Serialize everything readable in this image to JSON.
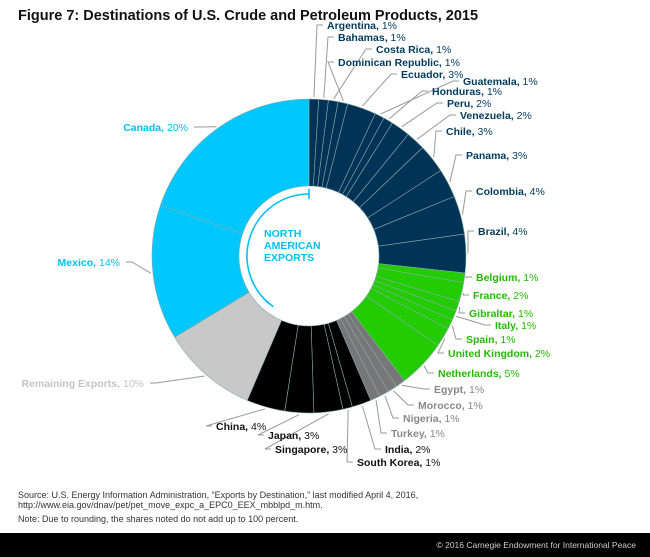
{
  "title": "Figure 7: Destinations of U.S. Crude and Petroleum Products, 2015",
  "source": "Source: U.S. Energy Information Administration, “Exports by Destination,” last modified April 4, 2016, http://www.eia.gov/dnav/pet/pet_move_expc_a_EPC0_EEX_mbblpd_m.htm.",
  "note": "Note: Due to rounding, the shares noted do not add up to 100 percent.",
  "copyright": "© 2016 Carnegie Endowment for International Peace",
  "chart_data": {
    "type": "pie",
    "donut": true,
    "unit": "%",
    "center_label": [
      "NORTH",
      "AMERICAN",
      "EXPORTS"
    ],
    "group_colors": {
      "latin": "#003355",
      "europe": "#22cc00",
      "africa_turkey": "#777777",
      "asia": "#000000",
      "remaining": "#c8c8c8",
      "north_america": "#00c8ff"
    },
    "label_colors": {
      "latin": "#003a5c",
      "europe": "#22bb00",
      "africa_turkey": "#888888",
      "asia": "#111111",
      "remaining": "#c4c4c4",
      "north_america": "#00c0f5"
    },
    "slices": [
      {
        "name": "Argentina",
        "value": 1,
        "group": "latin"
      },
      {
        "name": "Bahamas",
        "value": 1,
        "group": "latin"
      },
      {
        "name": "Costa Rica",
        "value": 1,
        "group": "latin"
      },
      {
        "name": "Dominican Republic",
        "value": 1,
        "group": "latin"
      },
      {
        "name": "Ecuador",
        "value": 3,
        "group": "latin"
      },
      {
        "name": "Guatemala",
        "value": 1,
        "group": "latin"
      },
      {
        "name": "Honduras",
        "value": 1,
        "group": "latin"
      },
      {
        "name": "Peru",
        "value": 2,
        "group": "latin"
      },
      {
        "name": "Venezuela",
        "value": 2,
        "group": "latin"
      },
      {
        "name": "Chile",
        "value": 3,
        "group": "latin"
      },
      {
        "name": "Panama",
        "value": 3,
        "group": "latin"
      },
      {
        "name": "Colombia",
        "value": 4,
        "group": "latin"
      },
      {
        "name": "Brazil",
        "value": 4,
        "group": "latin"
      },
      {
        "name": "Belgium",
        "value": 1,
        "group": "europe"
      },
      {
        "name": "France",
        "value": 2,
        "group": "europe"
      },
      {
        "name": "Gibraltar",
        "value": 1,
        "group": "europe"
      },
      {
        "name": "Italy",
        "value": 1,
        "group": "europe"
      },
      {
        "name": "Spain",
        "value": 1,
        "group": "europe"
      },
      {
        "name": "United Kingdom",
        "value": 2,
        "group": "europe"
      },
      {
        "name": "Netherlands",
        "value": 5,
        "group": "europe"
      },
      {
        "name": "Egypt",
        "value": 1,
        "group": "africa_turkey"
      },
      {
        "name": "Morocco",
        "value": 1,
        "group": "africa_turkey"
      },
      {
        "name": "Nigeria",
        "value": 1,
        "group": "africa_turkey"
      },
      {
        "name": "Turkey",
        "value": 1,
        "group": "africa_turkey"
      },
      {
        "name": "India",
        "value": 2,
        "group": "asia"
      },
      {
        "name": "South Korea",
        "value": 1,
        "group": "asia"
      },
      {
        "name": "Singapore",
        "value": 3,
        "group": "asia"
      },
      {
        "name": "Japan",
        "value": 3,
        "group": "asia"
      },
      {
        "name": "China",
        "value": 4,
        "group": "asia"
      },
      {
        "name": "Remaining Exports",
        "value": 10,
        "group": "remaining"
      },
      {
        "name": "Mexico",
        "value": 14,
        "group": "north_america"
      },
      {
        "name": "Canada",
        "value": 20,
        "group": "north_america"
      }
    ]
  }
}
